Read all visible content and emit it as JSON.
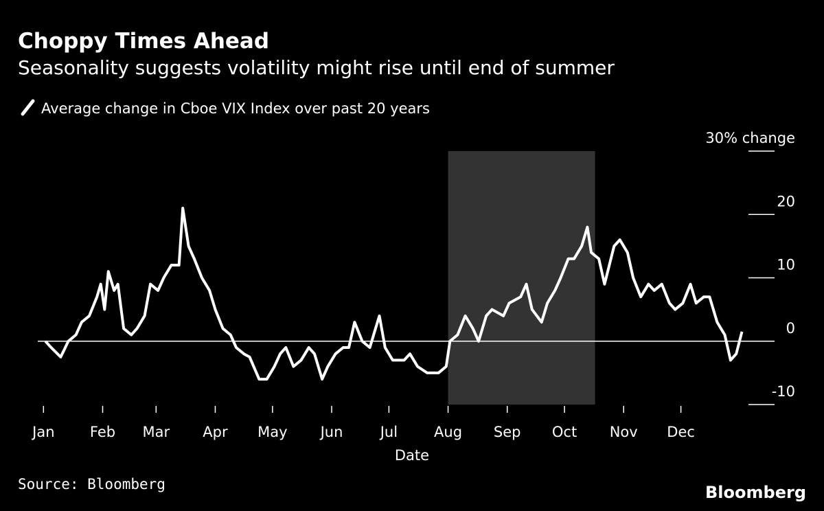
{
  "chart_data": {
    "type": "line",
    "title": "Choppy Times Ahead",
    "subtitle": "Seasonality suggests volatility might rise until end of summer",
    "x_label": "Date",
    "source": "Source: Bloomberg",
    "brand": "Bloomberg",
    "shade": [
      212,
      289
    ],
    "shade_color": "#333333",
    "xlim": [
      -3,
      373
    ],
    "ylim": [
      -10,
      30
    ],
    "xticks": [
      {
        "value": 0,
        "label": "Jan"
      },
      {
        "value": 31,
        "label": "Feb"
      },
      {
        "value": 59,
        "label": "Mar"
      },
      {
        "value": 90,
        "label": "Apr"
      },
      {
        "value": 120,
        "label": "May"
      },
      {
        "value": 151,
        "label": "Jun"
      },
      {
        "value": 181,
        "label": "Jul"
      },
      {
        "value": 212,
        "label": "Aug"
      },
      {
        "value": 243,
        "label": "Sep"
      },
      {
        "value": 273,
        "label": "Oct"
      },
      {
        "value": 304,
        "label": "Nov"
      },
      {
        "value": 334,
        "label": "Dec"
      }
    ],
    "yticks": [
      -10,
      0,
      10,
      20,
      {
        "value": 30,
        "label": "30% change"
      }
    ],
    "series": [
      {
        "name": "Average change in Cboe VIX Index over past 20 years",
        "color": "#ffffff",
        "x": [
          1,
          4,
          9,
          13,
          17,
          20,
          24,
          28,
          30,
          32,
          34,
          37,
          39,
          42,
          46,
          49,
          53,
          56,
          60,
          63,
          67,
          71,
          73,
          76,
          79,
          83,
          87,
          90,
          94,
          98,
          101,
          105,
          108,
          113,
          117,
          121,
          124,
          127,
          131,
          135,
          139,
          142,
          146,
          149,
          153,
          157,
          160,
          163,
          167,
          171,
          174,
          176,
          179,
          183,
          189,
          192,
          196,
          201,
          207,
          211,
          213,
          217,
          221,
          225,
          228,
          232,
          235,
          241,
          244,
          250,
          253,
          256,
          261,
          264,
          268,
          271,
          275,
          278,
          282,
          285,
          287,
          291,
          294,
          299,
          302,
          306,
          309,
          313,
          317,
          320,
          324,
          328,
          331,
          335,
          339,
          342,
          346,
          349,
          353,
          357,
          360,
          363,
          366
        ],
        "values": [
          0,
          -1,
          -2.5,
          0,
          1,
          3,
          4,
          7,
          9,
          5,
          11,
          8,
          9,
          2,
          1,
          2,
          4,
          9,
          8,
          10,
          12,
          12,
          21,
          15,
          13,
          10,
          8,
          5,
          2,
          1,
          -1,
          -2,
          -2.5,
          -6,
          -6,
          -4,
          -2,
          -1,
          -4,
          -3,
          -1,
          -2,
          -6,
          -4,
          -2,
          -1,
          -1,
          3,
          0,
          -1,
          2,
          4,
          -1,
          -3,
          -3,
          -2,
          -4,
          -5,
          -5,
          -4,
          0,
          1,
          4,
          2,
          0,
          4,
          5,
          4,
          6,
          7,
          9,
          5,
          3,
          6,
          8,
          10,
          13,
          13,
          15,
          18,
          14,
          13,
          9,
          15,
          16,
          14,
          10,
          7,
          9,
          8,
          9,
          6,
          5,
          6,
          9,
          6,
          7,
          7,
          3,
          1,
          -3,
          -2,
          1.5
        ]
      }
    ]
  }
}
